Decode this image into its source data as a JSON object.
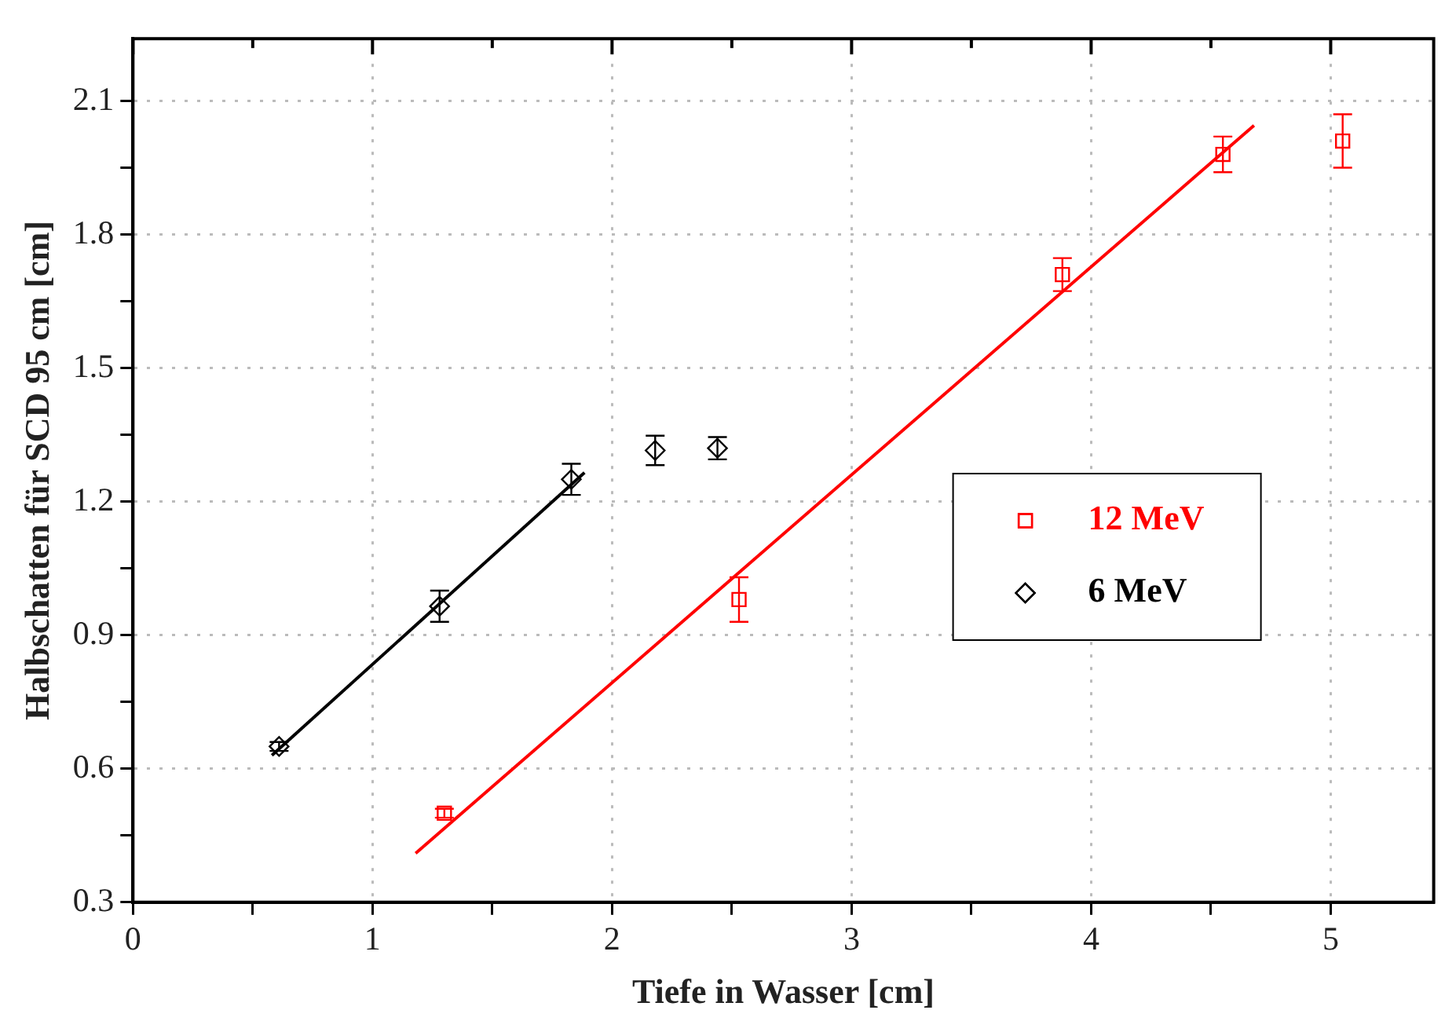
{
  "chart_data": {
    "type": "scatter",
    "xlabel": "Tiefe in Wasser [cm]",
    "ylabel": "Halbschatten für SCD 95 cm [cm]",
    "xlim": [
      0,
      5.43
    ],
    "ylim": [
      0.3,
      2.24
    ],
    "xticks": [
      0,
      {
        "value": 0.5,
        "label": null
      },
      1,
      {
        "value": 1.5,
        "label": null
      },
      2,
      {
        "value": 2.5,
        "label": null
      },
      3,
      {
        "value": 3.5,
        "label": null
      },
      4,
      {
        "value": 4.5,
        "label": null
      },
      5
    ],
    "yticks": [
      0.3,
      {
        "value": 0.45,
        "label": null
      },
      0.6,
      {
        "value": 0.75,
        "label": null
      },
      0.9,
      {
        "value": 1.05,
        "label": null
      },
      1.2,
      {
        "value": 1.35,
        "label": null
      },
      1.5,
      {
        "value": 1.65,
        "label": null
      },
      1.8,
      {
        "value": 1.95,
        "label": null
      },
      2.1
    ],
    "grid": true,
    "legend": "right",
    "series": [
      {
        "name": "12 MeV",
        "type": "scatter",
        "marker": "square",
        "color": "#ff0000",
        "x": [
          1.3,
          2.53,
          3.88,
          4.55,
          5.05
        ],
        "values": [
          0.5,
          0.98,
          1.71,
          1.98,
          2.01
        ],
        "errors": [
          0.01,
          0.05,
          0.037,
          0.04,
          0.06
        ]
      },
      {
        "name": "6 MeV",
        "type": "scatter",
        "marker": "diamond",
        "color": "#000000",
        "x": [
          0.61,
          1.28,
          1.83,
          2.18,
          2.44
        ],
        "values": [
          0.65,
          0.965,
          1.25,
          1.315,
          1.32
        ],
        "errors": [
          0.01,
          0.035,
          0.035,
          0.033,
          0.025
        ]
      },
      {
        "type": "line",
        "color": "#ff0000",
        "marker": "none",
        "x": [
          1.18,
          4.68
        ],
        "values": [
          0.41,
          2.045
        ]
      },
      {
        "type": "line",
        "color": "#000000",
        "marker": "none",
        "x": [
          0.58,
          1.885
        ],
        "values": [
          0.63,
          1.265
        ]
      }
    ]
  }
}
